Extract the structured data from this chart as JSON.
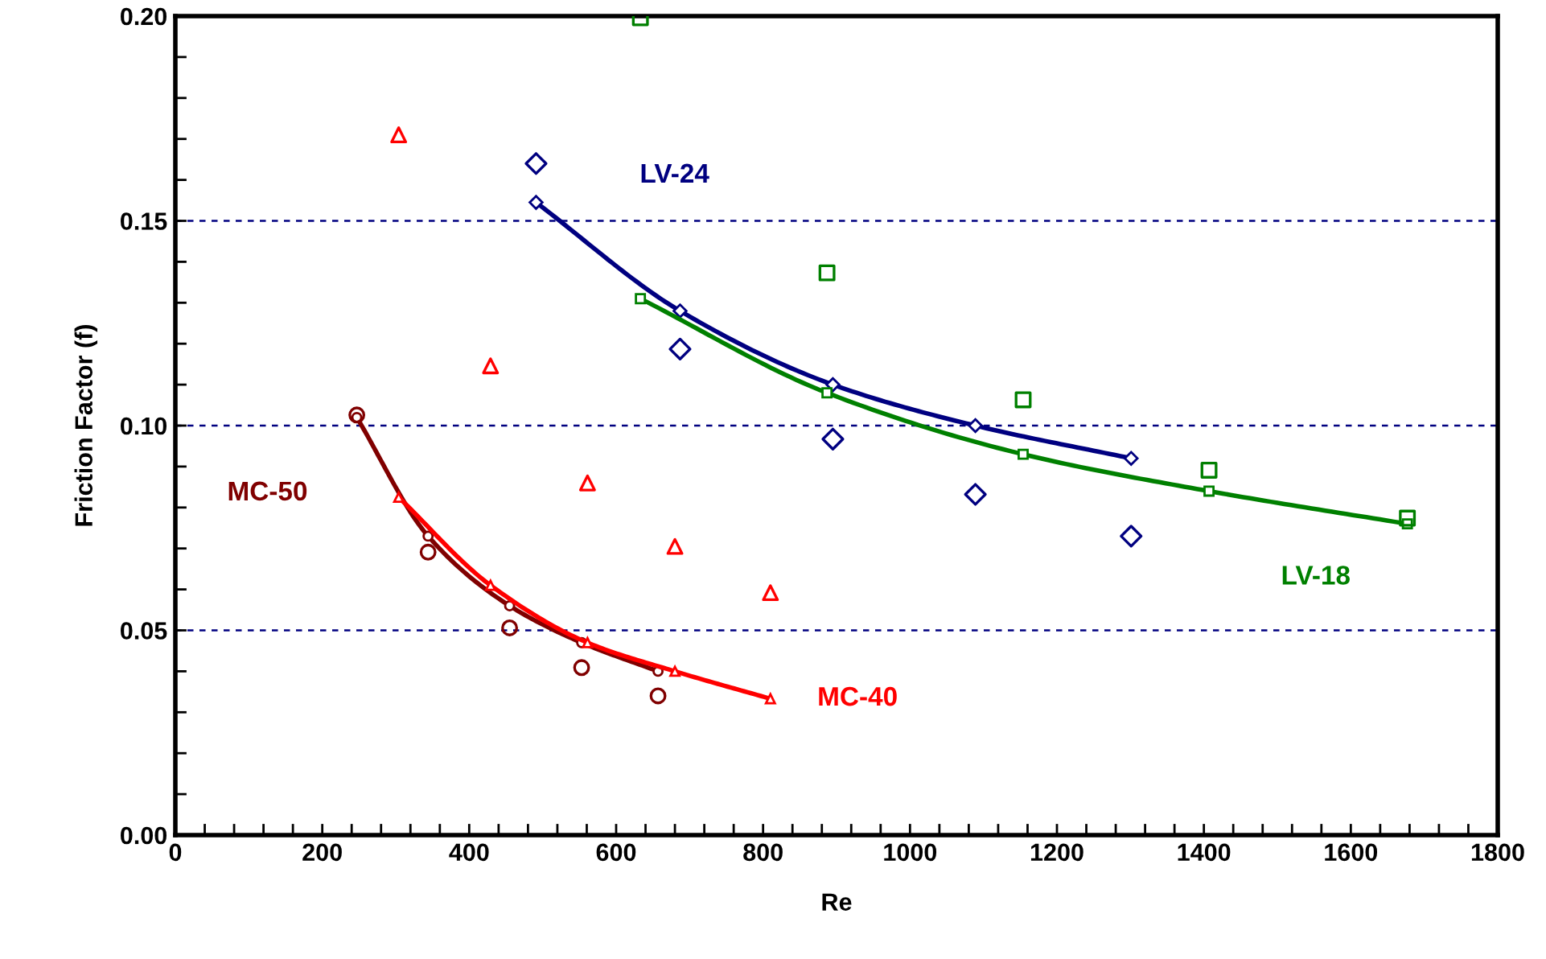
{
  "chart_data": {
    "type": "scatter",
    "xlabel": "Re",
    "ylabel": "Friction Factor (f)",
    "xlim": [
      0,
      1800
    ],
    "ylim": [
      0,
      0.2
    ],
    "xticks": [
      0,
      {
        "value": 40,
        "label": null
      },
      {
        "value": 80,
        "label": null
      },
      {
        "value": 120,
        "label": null
      },
      {
        "value": 160,
        "label": null
      },
      200,
      {
        "value": 240,
        "label": null
      },
      {
        "value": 280,
        "label": null
      },
      {
        "value": 320,
        "label": null
      },
      {
        "value": 360,
        "label": null
      },
      400,
      {
        "value": 440,
        "label": null
      },
      {
        "value": 480,
        "label": null
      },
      {
        "value": 520,
        "label": null
      },
      {
        "value": 560,
        "label": null
      },
      600,
      {
        "value": 640,
        "label": null
      },
      {
        "value": 680,
        "label": null
      },
      {
        "value": 720,
        "label": null
      },
      {
        "value": 760,
        "label": null
      },
      800,
      {
        "value": 840,
        "label": null
      },
      {
        "value": 880,
        "label": null
      },
      {
        "value": 920,
        "label": null
      },
      {
        "value": 960,
        "label": null
      },
      1000,
      {
        "value": 1040,
        "label": null
      },
      {
        "value": 1080,
        "label": null
      },
      {
        "value": 1120,
        "label": null
      },
      {
        "value": 1160,
        "label": null
      },
      1200,
      {
        "value": 1240,
        "label": null
      },
      {
        "value": 1280,
        "label": null
      },
      {
        "value": 1320,
        "label": null
      },
      {
        "value": 1360,
        "label": null
      },
      1400,
      {
        "value": 1440,
        "label": null
      },
      {
        "value": 1480,
        "label": null
      },
      {
        "value": 1520,
        "label": null
      },
      {
        "value": 1560,
        "label": null
      },
      1600,
      {
        "value": 1640,
        "label": null
      },
      {
        "value": 1680,
        "label": null
      },
      {
        "value": 1720,
        "label": null
      },
      {
        "value": 1760,
        "label": null
      },
      1800
    ],
    "yticks": [
      {
        "value": 0,
        "label": "0.00"
      },
      {
        "value": 0.01,
        "label": null
      },
      {
        "value": 0.02,
        "label": null
      },
      {
        "value": 0.03,
        "label": null
      },
      {
        "value": 0.04,
        "label": null
      },
      {
        "value": 0.05,
        "label": "0.05"
      },
      {
        "value": 0.06,
        "label": null
      },
      {
        "value": 0.07,
        "label": null
      },
      {
        "value": 0.08,
        "label": null
      },
      {
        "value": 0.09,
        "label": null
      },
      {
        "value": 0.1,
        "label": "0.10"
      },
      {
        "value": 0.11,
        "label": null
      },
      {
        "value": 0.12,
        "label": null
      },
      {
        "value": 0.13,
        "label": null
      },
      {
        "value": 0.14,
        "label": null
      },
      {
        "value": 0.15,
        "label": "0.15"
      },
      {
        "value": 0.16,
        "label": null
      },
      {
        "value": 0.17,
        "label": null
      },
      {
        "value": 0.18,
        "label": null
      },
      {
        "value": 0.19,
        "label": null
      },
      {
        "value": 0.2,
        "label": "0.20"
      }
    ],
    "grid": "y",
    "legend": false,
    "series": [
      {
        "marker": "circle",
        "color": "#800000",
        "x": [
          247,
          344,
          455,
          553,
          657
        ],
        "values": [
          0.1026,
          0.0691,
          0.0506,
          0.0409,
          0.034
        ]
      },
      {
        "marker": "triangle",
        "color": "#ff0000",
        "x": [
          304,
          429,
          561,
          680,
          810
        ],
        "values": [
          0.171,
          0.1146,
          0.086,
          0.0705,
          0.0592
        ]
      },
      {
        "marker": "diamond",
        "color": "#000080",
        "x": [
          491,
          687,
          895,
          1089,
          1301
        ],
        "values": [
          0.164,
          0.1187,
          0.0967,
          0.0832,
          0.073
        ]
      },
      {
        "marker": "square",
        "color": "#008000",
        "x": [
          633,
          887,
          1154,
          1407,
          1677
        ],
        "values": [
          0.1996,
          0.1373,
          0.1063,
          0.0891,
          0.0774
        ]
      },
      {
        "type": "line",
        "name": "MC-50",
        "marker": "circle",
        "color": "#800000",
        "x": [
          247,
          344,
          455,
          553,
          657
        ],
        "values": [
          0.102,
          0.073,
          0.056,
          0.047,
          0.04
        ]
      },
      {
        "type": "line",
        "name": "MC-40",
        "marker": "triangle",
        "color": "#ff0000",
        "x": [
          304,
          429,
          561,
          680,
          810
        ],
        "values": [
          0.0825,
          0.061,
          0.047,
          0.04,
          0.0333
        ]
      },
      {
        "type": "line",
        "name": "LV-24",
        "marker": "diamond",
        "color": "#000080",
        "x": [
          491,
          687,
          895,
          1089,
          1301
        ],
        "values": [
          0.1545,
          0.128,
          0.11,
          0.1,
          0.092
        ]
      },
      {
        "type": "line",
        "name": "LV-18",
        "marker": "square",
        "color": "#008000",
        "x": [
          633,
          887,
          1154,
          1407,
          1677
        ],
        "values": [
          0.131,
          0.108,
          0.093,
          0.084,
          0.076
        ]
      }
    ]
  }
}
